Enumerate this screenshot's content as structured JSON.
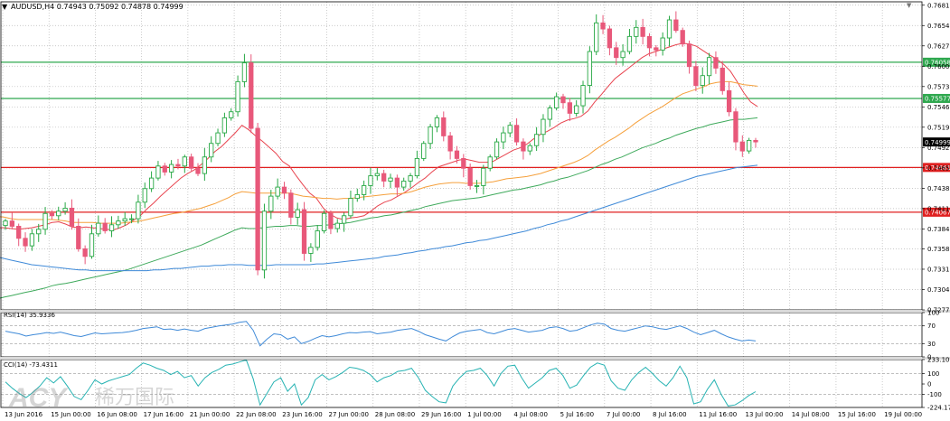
{
  "chart_data": [
    {
      "type": "candlestick",
      "panel": "main",
      "title": "AUDUSD,H4  0.74943 0.75092 0.74878 0.74999",
      "ylim": [
        0.7277,
        0.7686
      ],
      "y_ticks": [
        "0.76815",
        "0.76545",
        "0.76275",
        "0.76005",
        "0.75735",
        "0.75465",
        "0.75195",
        "0.74925",
        "0.74655",
        "0.74385",
        "0.74115",
        "0.73845",
        "0.73580",
        "0.73310",
        "0.73040",
        "0.72770"
      ],
      "x_ticks": [
        "13 Jun 2016",
        "15 Jun 00:00",
        "16 Jun 08:00",
        "17 Jun 16:00",
        "21 Jun 00:00",
        "22 Jun 08:00",
        "23 Jun 16:00",
        "27 Jun 00:00",
        "28 Jun 08:00",
        "29 Jun 16:00",
        "1 Jul 00:00",
        "4 Jul 08:00",
        "5 Jul 16:00",
        "7 Jul 00:00",
        "8 Jul 16:00",
        "11 Jul 16:00",
        "13 Jul 00:00",
        "14 Jul 08:00",
        "15 Jul 16:00",
        "19 Jul 00:00"
      ],
      "close": [
        0.7395,
        0.7388,
        0.7372,
        0.7362,
        0.7378,
        0.7384,
        0.7405,
        0.7402,
        0.7408,
        0.7412,
        0.7388,
        0.7358,
        0.7348,
        0.7378,
        0.7392,
        0.7382,
        0.739,
        0.7395,
        0.7398,
        0.7398,
        0.742,
        0.7438,
        0.7452,
        0.7468,
        0.746,
        0.747,
        0.7468,
        0.748,
        0.7465,
        0.7458,
        0.748,
        0.7498,
        0.7512,
        0.7532,
        0.754,
        0.758,
        0.7605,
        0.7518,
        0.733,
        0.7408,
        0.7428,
        0.744,
        0.7432,
        0.74,
        0.741,
        0.7352,
        0.736,
        0.7382,
        0.7405,
        0.7385,
        0.7392,
        0.7402,
        0.7425,
        0.743,
        0.7442,
        0.7455,
        0.7458,
        0.7448,
        0.7452,
        0.744,
        0.7448,
        0.7455,
        0.7478,
        0.7498,
        0.752,
        0.7532,
        0.7508,
        0.7488,
        0.7478,
        0.7465,
        0.7442,
        0.7442,
        0.7465,
        0.748,
        0.75,
        0.7512,
        0.7522,
        0.75,
        0.7488,
        0.7495,
        0.751,
        0.753,
        0.7545,
        0.756,
        0.7552,
        0.7538,
        0.7548,
        0.7575,
        0.762,
        0.7658,
        0.765,
        0.7625,
        0.7612,
        0.762,
        0.764,
        0.7652,
        0.764,
        0.7625,
        0.7622,
        0.7638,
        0.7662,
        0.7648,
        0.763,
        0.76,
        0.7575,
        0.7588,
        0.7612,
        0.7598,
        0.7568,
        0.754,
        0.75,
        0.7488,
        0.7502,
        0.75
      ],
      "series": [
        {
          "name": "",
          "color": "#e8444f",
          "values": [
            0.7383,
            0.7386,
            0.7386,
            0.7385,
            0.7384,
            0.7385,
            0.7386,
            0.7388,
            0.739,
            0.7393,
            0.7394,
            0.7391,
            0.7387,
            0.7386,
            0.7387,
            0.7386,
            0.7385,
            0.7384,
            0.7383,
            0.7386,
            0.739,
            0.7396,
            0.7402,
            0.7411,
            0.7419,
            0.7428,
            0.7436,
            0.7444,
            0.7452,
            0.7458,
            0.7463,
            0.747,
            0.7478,
            0.7487,
            0.7494,
            0.7503,
            0.7512,
            0.7522,
            0.7516,
            0.7508,
            0.7501,
            0.7493,
            0.7485,
            0.7474,
            0.7468,
            0.7455,
            0.7443,
            0.7432,
            0.7425,
            0.7412,
            0.7404,
            0.7399,
            0.7397,
            0.7399,
            0.74,
            0.7402,
            0.7408,
            0.7415,
            0.742,
            0.7423,
            0.7428,
            0.7433,
            0.7439,
            0.7446,
            0.7452,
            0.746,
            0.7467,
            0.747,
            0.7473,
            0.7476,
            0.7477,
            0.7475,
            0.7473,
            0.7473,
            0.7474,
            0.7479,
            0.7484,
            0.7489,
            0.7492,
            0.7497,
            0.7504,
            0.751,
            0.7514,
            0.7519,
            0.7525,
            0.7529,
            0.7531,
            0.7534,
            0.7541,
            0.7553,
            0.7563,
            0.7574,
            0.7584,
            0.7591,
            0.7598,
            0.7605,
            0.7612,
            0.7617,
            0.762,
            0.7623,
            0.7626,
            0.7629,
            0.7631,
            0.763,
            0.7627,
            0.7621,
            0.7615,
            0.761,
            0.7603,
            0.7594,
            0.758,
            0.7565,
            0.7553,
            0.7547
          ]
        },
        {
          "name": "",
          "color": "#f5a03c",
          "values": [
            0.7402,
            0.7401,
            0.74,
            0.7398,
            0.7397,
            0.7397,
            0.7397,
            0.7397,
            0.7397,
            0.7397,
            0.7396,
            0.7395,
            0.7393,
            0.7393,
            0.7393,
            0.7393,
            0.7392,
            0.7392,
            0.7392,
            0.7392,
            0.7393,
            0.7394,
            0.7395,
            0.7397,
            0.7399,
            0.7401,
            0.7403,
            0.7405,
            0.7406,
            0.7408,
            0.741,
            0.7412,
            0.7415,
            0.7418,
            0.7422,
            0.7426,
            0.7431,
            0.7434,
            0.7433,
            0.7432,
            0.7432,
            0.7432,
            0.7432,
            0.7432,
            0.7432,
            0.743,
            0.7428,
            0.7427,
            0.7426,
            0.7425,
            0.7425,
            0.7424,
            0.7425,
            0.7425,
            0.7426,
            0.7427,
            0.7428,
            0.7429,
            0.743,
            0.7431,
            0.7431,
            0.7432,
            0.7434,
            0.7437,
            0.744,
            0.7442,
            0.7444,
            0.7445,
            0.7446,
            0.7446,
            0.7445,
            0.7445,
            0.7445,
            0.7446,
            0.7447,
            0.7449,
            0.7451,
            0.7452,
            0.7453,
            0.7454,
            0.7456,
            0.7458,
            0.7461,
            0.7464,
            0.7467,
            0.747,
            0.7473,
            0.7477,
            0.7482,
            0.7489,
            0.7495,
            0.7501,
            0.7506,
            0.7512,
            0.7518,
            0.7525,
            0.7531,
            0.7537,
            0.7542,
            0.7547,
            0.7553,
            0.7559,
            0.7564,
            0.7567,
            0.757,
            0.7573,
            0.7577,
            0.7579,
            0.758,
            0.758,
            0.7578,
            0.7576,
            0.7575,
            0.7574
          ]
        },
        {
          "name": "",
          "color": "#3faa5c",
          "values": [
            0.729,
            0.7292,
            0.7294,
            0.7296,
            0.7298,
            0.73,
            0.7302,
            0.7304,
            0.7306,
            0.7309,
            0.7311,
            0.7312,
            0.7314,
            0.7316,
            0.7318,
            0.732,
            0.7322,
            0.7324,
            0.7326,
            0.7328,
            0.733,
            0.7333,
            0.7336,
            0.7339,
            0.7342,
            0.7345,
            0.7348,
            0.7351,
            0.7354,
            0.7357,
            0.736,
            0.7363,
            0.7367,
            0.7371,
            0.7375,
            0.7379,
            0.7383,
            0.7386,
            0.7385,
            0.7385,
            0.7386,
            0.7387,
            0.7388,
            0.7388,
            0.7389,
            0.7389,
            0.7388,
            0.7388,
            0.7389,
            0.7389,
            0.739,
            0.7391,
            0.7392,
            0.7393,
            0.7395,
            0.7397,
            0.7399,
            0.74,
            0.7402,
            0.7403,
            0.7405,
            0.7407,
            0.7409,
            0.7411,
            0.7414,
            0.7416,
            0.7418,
            0.742,
            0.7422,
            0.7423,
            0.7424,
            0.7425,
            0.7426,
            0.7428,
            0.743,
            0.7432,
            0.7434,
            0.7436,
            0.7437,
            0.7439,
            0.7441,
            0.7443,
            0.7446,
            0.7448,
            0.7451,
            0.7453,
            0.7456,
            0.7459,
            0.7462,
            0.7466,
            0.747,
            0.7473,
            0.7477,
            0.748,
            0.7484,
            0.7488,
            0.7492,
            0.7495,
            0.7498,
            0.7502,
            0.7505,
            0.7509,
            0.7512,
            0.7515,
            0.7518,
            0.752,
            0.7523,
            0.7525,
            0.7527,
            0.7529,
            0.753,
            0.753,
            0.7531,
            0.7532
          ]
        },
        {
          "name": "",
          "color": "#3f8ad8",
          "values": [
            0.7349,
            0.7347,
            0.7345,
            0.7343,
            0.7341,
            0.7339,
            0.7337,
            0.7336,
            0.7335,
            0.7334,
            0.7333,
            0.7332,
            0.7331,
            0.733,
            0.733,
            0.7329,
            0.7329,
            0.7329,
            0.7329,
            0.7329,
            0.7329,
            0.7329,
            0.7329,
            0.7329,
            0.733,
            0.733,
            0.7331,
            0.7332,
            0.7332,
            0.7333,
            0.7334,
            0.7335,
            0.7335,
            0.7336,
            0.7336,
            0.7337,
            0.7337,
            0.7337,
            0.7336,
            0.7336,
            0.7336,
            0.7336,
            0.7337,
            0.7337,
            0.7337,
            0.7337,
            0.7337,
            0.7337,
            0.7338,
            0.7338,
            0.7339,
            0.734,
            0.7341,
            0.7342,
            0.7343,
            0.7344,
            0.7345,
            0.7346,
            0.7348,
            0.7349,
            0.735,
            0.7352,
            0.7353,
            0.7355,
            0.7356,
            0.7358,
            0.7359,
            0.7361,
            0.7362,
            0.7364,
            0.7366,
            0.7367,
            0.7369,
            0.737,
            0.7372,
            0.7374,
            0.7376,
            0.7378,
            0.738,
            0.7382,
            0.7385,
            0.7387,
            0.739,
            0.7392,
            0.7395,
            0.7397,
            0.74,
            0.7403,
            0.7406,
            0.7409,
            0.7412,
            0.7415,
            0.7418,
            0.7421,
            0.7424,
            0.7427,
            0.743,
            0.7433,
            0.7436,
            0.7439,
            0.7442,
            0.7445,
            0.7448,
            0.7451,
            0.7454,
            0.7456,
            0.7458,
            0.746,
            0.7462,
            0.7464,
            0.7466,
            0.7467,
            0.7468,
            0.7469
          ]
        }
      ],
      "horizontal_levels": [
        {
          "label": "0.76058",
          "value": 0.76058,
          "color": "#2fa84f"
        },
        {
          "label": "0.75577",
          "value": 0.75577,
          "color": "#2fa84f"
        },
        {
          "label": "0.74661",
          "value": 0.74661,
          "color": "#e02020"
        },
        {
          "label": "0.74067",
          "value": 0.74067,
          "color": "#e02020"
        }
      ],
      "current_price": "0.74999"
    },
    {
      "type": "line",
      "panel": "rsi",
      "title": "RSI(14) 35.9336",
      "ylim": [
        0,
        100
      ],
      "y_ticks": [
        "100",
        "70",
        "30",
        "0"
      ],
      "series": [
        {
          "name": "",
          "color": "#3f8ad8",
          "values": [
            58,
            55,
            52,
            47,
            50,
            52,
            55,
            53,
            56,
            52,
            48,
            46,
            50,
            54,
            52,
            53,
            54,
            55,
            57,
            60,
            64,
            66,
            68,
            62,
            63,
            60,
            63,
            60,
            58,
            64,
            67,
            70,
            72,
            74,
            78,
            80,
            60,
            25,
            40,
            52,
            50,
            40,
            45,
            30,
            35,
            42,
            48,
            45,
            48,
            52,
            55,
            54,
            56,
            57,
            52,
            54,
            56,
            60,
            62,
            64,
            58,
            50,
            45,
            40,
            36,
            46,
            54,
            58,
            60,
            62,
            55,
            52,
            57,
            62,
            64,
            60,
            56,
            58,
            60,
            66,
            68,
            64,
            58,
            60,
            66,
            72,
            76,
            74,
            64,
            60,
            58,
            62,
            66,
            70,
            68,
            64,
            62,
            66,
            70,
            64,
            56,
            50,
            55,
            60,
            52,
            45,
            40,
            36,
            38,
            36
          ]
        }
      ]
    },
    {
      "type": "line",
      "panel": "cci",
      "title": "CCI(14) -73.4311",
      "ylim": [
        -224.1749,
        233.1098
      ],
      "y_ticks": [
        "233.1098",
        "100",
        "0",
        "-100",
        "-224.1749"
      ],
      "series": [
        {
          "name": "",
          "color": "#27b3b3",
          "values": [
            20,
            -40,
            -90,
            -130,
            -80,
            -20,
            60,
            10,
            70,
            -20,
            -120,
            -150,
            -60,
            40,
            0,
            30,
            50,
            70,
            90,
            150,
            200,
            180,
            150,
            130,
            90,
            120,
            60,
            80,
            -20,
            60,
            110,
            140,
            180,
            190,
            210,
            230,
            50,
            -200,
            -90,
            20,
            60,
            -70,
            0,
            -200,
            -130,
            40,
            90,
            40,
            70,
            110,
            160,
            150,
            130,
            90,
            20,
            60,
            80,
            120,
            130,
            150,
            60,
            -60,
            -120,
            -170,
            -180,
            -20,
            60,
            120,
            130,
            150,
            80,
            -20,
            100,
            170,
            180,
            60,
            -40,
            10,
            60,
            130,
            150,
            80,
            -40,
            -10,
            80,
            160,
            200,
            180,
            30,
            -40,
            -60,
            40,
            110,
            160,
            100,
            30,
            -20,
            60,
            170,
            60,
            -190,
            -170,
            -50,
            40,
            -100,
            -210,
            -200,
            -160,
            -110,
            -73
          ]
        }
      ]
    }
  ],
  "watermark": {
    "brand": "ACY",
    "chinese": "稀万国际"
  },
  "icons": {
    "menu": "triangle-down-icon",
    "scroll": "triangle-down-small-icon"
  }
}
